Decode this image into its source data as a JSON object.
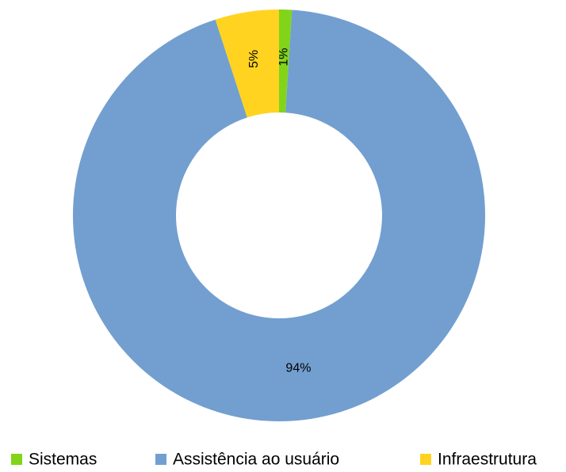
{
  "chart_data": {
    "type": "donut",
    "categories": [
      "Sistemas",
      "Assistência ao usuário",
      "Infraestrutura"
    ],
    "values": [
      1,
      94,
      5
    ],
    "value_labels": [
      "1%",
      "94%",
      "5%"
    ],
    "colors": [
      "#81d41a",
      "#729fcf",
      "#ffd320"
    ],
    "legend": "bottom"
  }
}
